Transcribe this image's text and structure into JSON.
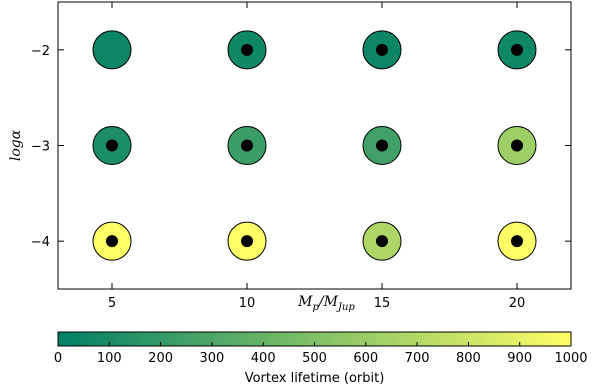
{
  "chart_data": {
    "type": "scatter",
    "xlabel_main": "M",
    "xlabel_sub": "p",
    "xlabel_slash": "/M",
    "xlabel_sub2": "Jup",
    "ylabel": "logα",
    "xlim": [
      3,
      22
    ],
    "ylim": [
      -4.5,
      -1.5
    ],
    "xticks": [
      5,
      10,
      15,
      20
    ],
    "yticks": [
      -2,
      -3,
      -4
    ],
    "xtick_labels": [
      "5",
      "10",
      "15",
      "20"
    ],
    "ytick_labels": [
      "−2",
      "−3",
      "−4"
    ],
    "points": [
      {
        "x": 5,
        "y": -2,
        "lifetime": 50,
        "inner_dot": false
      },
      {
        "x": 10,
        "y": -2,
        "lifetime": 60,
        "inner_dot": true
      },
      {
        "x": 15,
        "y": -2,
        "lifetime": 50,
        "inner_dot": true
      },
      {
        "x": 20,
        "y": -2,
        "lifetime": 60,
        "inner_dot": true
      },
      {
        "x": 5,
        "y": -3,
        "lifetime": 110,
        "inner_dot": true
      },
      {
        "x": 10,
        "y": -3,
        "lifetime": 230,
        "inner_dot": true
      },
      {
        "x": 15,
        "y": -3,
        "lifetime": 250,
        "inner_dot": true
      },
      {
        "x": 20,
        "y": -3,
        "lifetime": 620,
        "inner_dot": true
      },
      {
        "x": 5,
        "y": -4,
        "lifetime": 1000,
        "inner_dot": true
      },
      {
        "x": 10,
        "y": -4,
        "lifetime": 1000,
        "inner_dot": true
      },
      {
        "x": 15,
        "y": -4,
        "lifetime": 680,
        "inner_dot": true
      },
      {
        "x": 20,
        "y": -4,
        "lifetime": 1000,
        "inner_dot": true
      }
    ],
    "colorbar": {
      "label": "Vortex lifetime (orbit)",
      "range": [
        0,
        1000
      ],
      "ticks": [
        0,
        100,
        200,
        300,
        400,
        500,
        600,
        700,
        800,
        900,
        1000
      ],
      "tick_labels": [
        "0",
        "100",
        "200",
        "300",
        "400",
        "500",
        "600",
        "700",
        "800",
        "900",
        "1000"
      ],
      "colormap": "summer",
      "color_low": "#008066",
      "color_high": "#ffff66"
    },
    "grid": false
  }
}
